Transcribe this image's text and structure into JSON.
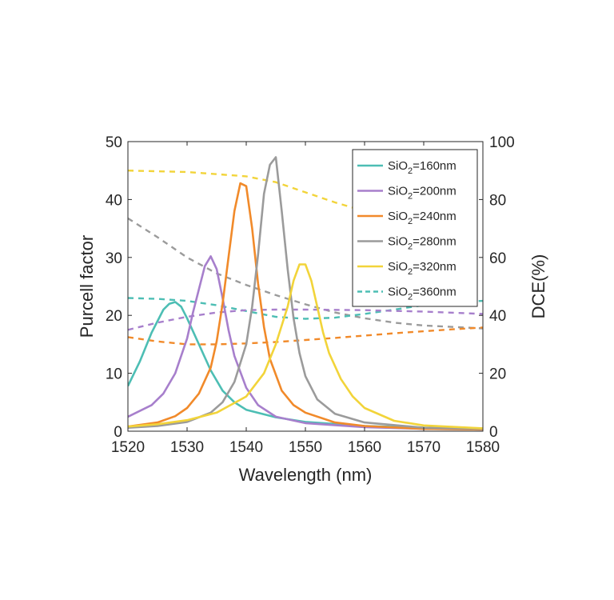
{
  "chart_data": {
    "type": "line",
    "title": "",
    "xlabel": "Wavelength (nm)",
    "ylabel_left": "Purcell factor",
    "ylabel_right": "DCE(%)",
    "xlim": [
      1520,
      1580
    ],
    "ylim_left": [
      0,
      50
    ],
    "ylim_right": [
      0,
      100
    ],
    "x_ticks": [
      1520,
      1530,
      1540,
      1550,
      1560,
      1570,
      1580
    ],
    "y_ticks_left": [
      0,
      10,
      20,
      30,
      40,
      50
    ],
    "y_ticks_right": [
      0,
      20,
      40,
      60,
      80,
      100
    ],
    "legend_position": "top-right",
    "legend": [
      {
        "prefix": "SiO",
        "sub": "2",
        "suffix": "=160nm",
        "color": "#4DBEB4",
        "dash": false
      },
      {
        "prefix": "SiO",
        "sub": "2",
        "suffix": "=200nm",
        "color": "#A77FCC",
        "dash": false
      },
      {
        "prefix": "SiO",
        "sub": "2",
        "suffix": "=240nm",
        "color": "#F18A2A",
        "dash": false
      },
      {
        "prefix": "SiO",
        "sub": "2",
        "suffix": "=280nm",
        "color": "#9B9B9B",
        "dash": false
      },
      {
        "prefix": "SiO",
        "sub": "2",
        "suffix": "=320nm",
        "color": "#F2D43A",
        "dash": false
      },
      {
        "prefix": "SiO",
        "sub": "2",
        "suffix": "=360nm",
        "color": "#4DBEB4",
        "dash": true
      }
    ],
    "purcell_series": [
      {
        "color": "#4DBEB4",
        "x": [
          1520,
          1522,
          1524,
          1526,
          1527,
          1528,
          1529,
          1530,
          1532,
          1534,
          1536,
          1538,
          1540,
          1545,
          1550,
          1560,
          1570,
          1580
        ],
        "y": [
          7.8,
          12,
          17,
          21,
          22,
          22.3,
          21.5,
          19.5,
          15,
          10.5,
          7,
          5,
          3.7,
          2.4,
          1.6,
          0.9,
          0.6,
          0.4
        ]
      },
      {
        "color": "#A77FCC",
        "x": [
          1520,
          1524,
          1526,
          1528,
          1530,
          1531,
          1532,
          1533,
          1534,
          1535,
          1536,
          1537,
          1538,
          1540,
          1542,
          1545,
          1550,
          1560,
          1570,
          1580
        ],
        "y": [
          2.5,
          4.5,
          6.5,
          10,
          16,
          20.5,
          24.5,
          28.5,
          30.2,
          28,
          23,
          17.5,
          13,
          7.5,
          4.5,
          2.5,
          1.4,
          0.7,
          0.4,
          0.3
        ]
      },
      {
        "color": "#F18A2A",
        "x": [
          1520,
          1525,
          1528,
          1530,
          1532,
          1534,
          1535,
          1536,
          1537,
          1538,
          1539,
          1540,
          1541,
          1542,
          1543,
          1544,
          1546,
          1548,
          1550,
          1555,
          1560,
          1570,
          1580
        ],
        "y": [
          0.8,
          1.5,
          2.6,
          4,
          6.5,
          11,
          15.5,
          22,
          30,
          38,
          42.8,
          42.3,
          35,
          25.5,
          18,
          12.5,
          7,
          4.5,
          3.2,
          1.5,
          0.9,
          0.4,
          0.3
        ]
      },
      {
        "color": "#9B9B9B",
        "x": [
          1520,
          1525,
          1530,
          1534,
          1536,
          1538,
          1540,
          1541,
          1542,
          1543,
          1544,
          1545,
          1546,
          1547,
          1548,
          1549,
          1550,
          1552,
          1555,
          1560,
          1570,
          1580
        ],
        "y": [
          0.6,
          0.9,
          1.6,
          3.2,
          5,
          8.5,
          15,
          21.5,
          30.5,
          41,
          46,
          47.3,
          38,
          28,
          19.5,
          13.5,
          9.5,
          5.5,
          3,
          1.5,
          0.6,
          0.4
        ]
      },
      {
        "color": "#F2D43A",
        "x": [
          1520,
          1525,
          1530,
          1535,
          1540,
          1543,
          1545,
          1547,
          1548,
          1549,
          1550,
          1551,
          1552,
          1553,
          1554,
          1556,
          1558,
          1560,
          1565,
          1570,
          1580
        ],
        "y": [
          0.8,
          1.2,
          1.9,
          3.2,
          6,
          10,
          15,
          21.5,
          26,
          28.8,
          28.8,
          26,
          21.5,
          17,
          13.5,
          9,
          6,
          4,
          1.8,
          1,
          0.5
        ]
      }
    ],
    "dce_series": [
      {
        "color": "#F2D43A",
        "x": [
          1520,
          1530,
          1540,
          1545,
          1550,
          1555,
          1560
        ],
        "y": [
          90,
          89.5,
          88,
          86,
          82.5,
          79,
          76
        ]
      },
      {
        "color": "#9B9B9B",
        "x": [
          1520,
          1525,
          1530,
          1535,
          1540,
          1545,
          1550,
          1555,
          1560,
          1565,
          1570,
          1575,
          1580
        ],
        "y": [
          73.5,
          67,
          60,
          54.5,
          50.5,
          47,
          43.8,
          41,
          39,
          37.5,
          36.5,
          36,
          35.5
        ]
      },
      {
        "color": "#4DBEB4",
        "x": [
          1520,
          1525,
          1530,
          1535,
          1540,
          1545,
          1550,
          1555,
          1560,
          1565,
          1570,
          1575,
          1580
        ],
        "y": [
          46,
          45.7,
          45,
          43.5,
          41.5,
          39.5,
          38.8,
          39.2,
          40.5,
          42,
          43.5,
          44.5,
          45
        ]
      },
      {
        "color": "#A77FCC",
        "x": [
          1520,
          1525,
          1530,
          1535,
          1540,
          1545,
          1550,
          1560,
          1570,
          1580
        ],
        "y": [
          35,
          37.5,
          39.5,
          41,
          41.8,
          42,
          42,
          41.8,
          41.3,
          40.5
        ]
      },
      {
        "color": "#F18A2A",
        "x": [
          1520,
          1525,
          1530,
          1535,
          1540,
          1545,
          1550,
          1555,
          1560,
          1565,
          1570,
          1575,
          1580
        ],
        "y": [
          32.5,
          31,
          30,
          30,
          30.3,
          30.8,
          31.5,
          32.2,
          33,
          33.8,
          34.5,
          35.2,
          35.8
        ]
      }
    ]
  }
}
